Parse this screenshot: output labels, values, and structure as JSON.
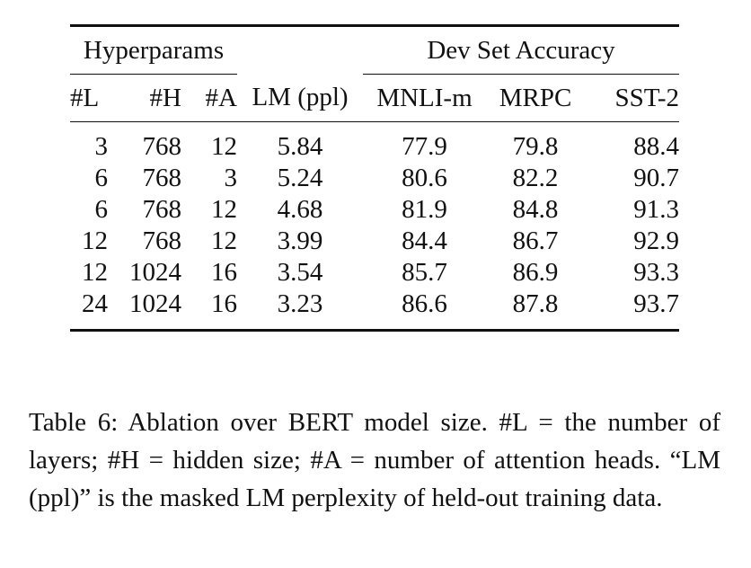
{
  "table": {
    "group_headers": [
      "Hyperparams",
      "Dev Set Accuracy"
    ],
    "columns": [
      "#L",
      "#H",
      "#A",
      "LM (ppl)",
      "MNLI-m",
      "MRPC",
      "SST-2"
    ],
    "rows": [
      [
        "3",
        "768",
        "12",
        "5.84",
        "77.9",
        "79.8",
        "88.4"
      ],
      [
        "6",
        "768",
        "3",
        "5.24",
        "80.6",
        "82.2",
        "90.7"
      ],
      [
        "6",
        "768",
        "12",
        "4.68",
        "81.9",
        "84.8",
        "91.3"
      ],
      [
        "12",
        "768",
        "12",
        "3.99",
        "84.4",
        "86.7",
        "92.9"
      ],
      [
        "12",
        "1024",
        "16",
        "3.54",
        "85.7",
        "86.9",
        "93.3"
      ],
      [
        "24",
        "1024",
        "16",
        "3.23",
        "86.6",
        "87.8",
        "93.7"
      ]
    ]
  },
  "caption": {
    "text": "Table 6:   Ablation over BERT model size.  #L = the number of layers; #H = hidden size; #A = number of attention heads. “LM (ppl)” is the masked LM perplexity of held-out training data."
  }
}
